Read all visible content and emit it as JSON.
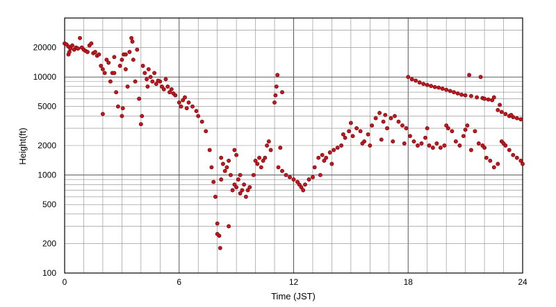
{
  "chart_data": {
    "type": "scatter",
    "title": "",
    "xlabel": "Time (JST)",
    "ylabel": "Height(ft)",
    "xlim": [
      0,
      24
    ],
    "ylim": [
      100,
      40000
    ],
    "yscale": "log",
    "x_ticks": [
      0,
      6,
      12,
      18,
      24
    ],
    "x_tick_labels": [
      "0",
      "6",
      "12",
      "18",
      "24"
    ],
    "y_ticks": [
      100,
      200,
      500,
      1000,
      2000,
      5000,
      10000,
      20000
    ],
    "y_tick_labels": [
      "100",
      "200",
      "500",
      "1000",
      "2000",
      "5000",
      "10000",
      "20000"
    ],
    "grid": true,
    "marker_color": "#c8141e",
    "marker_edge_color": "#6a0a0a",
    "series": [
      {
        "points": [
          [
            0.0,
            22000
          ],
          [
            0.1,
            21500
          ],
          [
            0.2,
            20500
          ],
          [
            0.3,
            19500
          ],
          [
            0.4,
            21000
          ],
          [
            0.5,
            19000
          ],
          [
            0.6,
            20000
          ],
          [
            0.7,
            19500
          ],
          [
            0.8,
            25000
          ],
          [
            0.9,
            20000
          ],
          [
            1.0,
            19000
          ],
          [
            1.1,
            18500
          ],
          [
            1.2,
            18000
          ],
          [
            1.3,
            21000
          ],
          [
            1.4,
            22000
          ],
          [
            1.5,
            17500
          ],
          [
            1.6,
            18000
          ],
          [
            1.7,
            16500
          ],
          [
            1.8,
            17000
          ],
          [
            0.2,
            17000
          ],
          [
            0.25,
            18000
          ],
          [
            1.9,
            13000
          ],
          [
            2.0,
            12000
          ],
          [
            2.0,
            4200
          ],
          [
            2.1,
            11000
          ],
          [
            2.2,
            15000
          ],
          [
            2.3,
            14000
          ],
          [
            2.4,
            9000
          ],
          [
            2.5,
            11000
          ],
          [
            2.6,
            16000
          ],
          [
            2.7,
            7000
          ],
          [
            2.8,
            5000
          ],
          [
            2.9,
            13000
          ],
          [
            3.0,
            4000
          ],
          [
            3.05,
            4800
          ],
          [
            3.1,
            17000
          ],
          [
            3.2,
            12000
          ],
          [
            3.3,
            8000
          ],
          [
            3.4,
            18000
          ],
          [
            3.5,
            25000
          ],
          [
            3.55,
            23000
          ],
          [
            3.6,
            15000
          ],
          [
            3.7,
            9000
          ],
          [
            3.8,
            19000
          ],
          [
            3.9,
            6000
          ],
          [
            4.0,
            3300
          ],
          [
            4.05,
            4000
          ],
          [
            4.1,
            13000
          ],
          [
            3.0,
            15000
          ],
          [
            2.6,
            11000
          ],
          [
            3.2,
            17000
          ],
          [
            4.2,
            11000
          ],
          [
            4.3,
            9500
          ],
          [
            4.4,
            12000
          ],
          [
            4.5,
            10000
          ],
          [
            4.6,
            9000
          ],
          [
            4.7,
            11000
          ],
          [
            4.8,
            8500
          ],
          [
            5.0,
            9000
          ],
          [
            5.1,
            8000
          ],
          [
            5.2,
            7500
          ],
          [
            5.3,
            9500
          ],
          [
            5.4,
            8000
          ],
          [
            5.5,
            7000
          ],
          [
            5.6,
            7500
          ],
          [
            5.8,
            6500
          ],
          [
            6.0,
            5500
          ],
          [
            6.1,
            5000
          ],
          [
            6.2,
            5800
          ],
          [
            6.3,
            6200
          ],
          [
            6.5,
            5500
          ],
          [
            6.7,
            5000
          ],
          [
            6.9,
            4500
          ],
          [
            7.0,
            4000
          ],
          [
            7.2,
            3500
          ],
          [
            7.4,
            2800
          ],
          [
            4.35,
            8000
          ],
          [
            4.9,
            9200
          ],
          [
            5.7,
            6800
          ],
          [
            6.4,
            4800
          ],
          [
            7.6,
            1800
          ],
          [
            7.7,
            1200
          ],
          [
            7.8,
            850
          ],
          [
            7.9,
            600
          ],
          [
            8.0,
            320
          ],
          [
            8.1,
            240
          ],
          [
            8.15,
            180
          ],
          [
            8.2,
            1500
          ],
          [
            8.3,
            1300
          ],
          [
            8.4,
            1100
          ],
          [
            8.5,
            1200
          ],
          [
            8.6,
            1400
          ],
          [
            8.7,
            1000
          ],
          [
            8.8,
            700
          ],
          [
            8.9,
            800
          ],
          [
            9.0,
            750
          ],
          [
            9.1,
            900
          ],
          [
            9.2,
            650
          ],
          [
            9.3,
            700
          ],
          [
            9.4,
            800
          ],
          [
            9.5,
            600
          ],
          [
            9.6,
            700
          ],
          [
            9.7,
            750
          ],
          [
            8.9,
            1800
          ],
          [
            9.0,
            1600
          ],
          [
            8.0,
            250
          ],
          [
            8.6,
            300
          ],
          [
            8.2,
            900
          ],
          [
            9.2,
            1000
          ],
          [
            9.9,
            1000
          ],
          [
            10.0,
            1400
          ],
          [
            10.1,
            1300
          ],
          [
            10.2,
            1500
          ],
          [
            10.3,
            1200
          ],
          [
            10.4,
            1400
          ],
          [
            10.5,
            1500
          ],
          [
            10.6,
            2000
          ],
          [
            10.7,
            2200
          ],
          [
            10.8,
            1800
          ],
          [
            11.0,
            5500
          ],
          [
            11.05,
            6500
          ],
          [
            11.1,
            8000
          ],
          [
            11.15,
            10500
          ],
          [
            11.4,
            7000
          ],
          [
            11.2,
            1200
          ],
          [
            11.4,
            1100
          ],
          [
            11.6,
            1000
          ],
          [
            11.8,
            950
          ],
          [
            12.0,
            900
          ],
          [
            12.2,
            850
          ],
          [
            12.4,
            750
          ],
          [
            12.5,
            700
          ],
          [
            12.6,
            800
          ],
          [
            12.8,
            900
          ],
          [
            13.0,
            950
          ],
          [
            11.3,
            1900
          ],
          [
            12.3,
            800
          ],
          [
            13.1,
            1200
          ],
          [
            13.3,
            1500
          ],
          [
            13.5,
            1600
          ],
          [
            13.7,
            1500
          ],
          [
            13.9,
            1700
          ],
          [
            14.1,
            1800
          ],
          [
            14.3,
            1900
          ],
          [
            14.5,
            2000
          ],
          [
            14.7,
            2400
          ],
          [
            14.9,
            2800
          ],
          [
            15.1,
            2500
          ],
          [
            15.3,
            3000
          ],
          [
            15.5,
            2800
          ],
          [
            15.7,
            2200
          ],
          [
            15.9,
            2600
          ],
          [
            16.1,
            3200
          ],
          [
            16.3,
            3800
          ],
          [
            16.5,
            4300
          ],
          [
            16.7,
            3500
          ],
          [
            16.9,
            3000
          ],
          [
            17.1,
            3800
          ],
          [
            17.3,
            4000
          ],
          [
            17.5,
            3500
          ],
          [
            17.7,
            3200
          ],
          [
            17.9,
            3000
          ],
          [
            13.4,
            1000
          ],
          [
            14.0,
            1300
          ],
          [
            15.0,
            3400
          ],
          [
            15.6,
            2100
          ],
          [
            16.0,
            2000
          ],
          [
            16.6,
            2300
          ],
          [
            17.2,
            2200
          ],
          [
            17.8,
            2100
          ],
          [
            13.6,
            1400
          ],
          [
            14.6,
            2600
          ],
          [
            16.8,
            4100
          ],
          [
            18.0,
            10000
          ],
          [
            18.2,
            9500
          ],
          [
            18.4,
            9200
          ],
          [
            18.6,
            8800
          ],
          [
            18.8,
            8500
          ],
          [
            19.0,
            8300
          ],
          [
            19.2,
            8100
          ],
          [
            19.4,
            7900
          ],
          [
            19.6,
            7800
          ],
          [
            19.8,
            7600
          ],
          [
            20.0,
            7400
          ],
          [
            20.2,
            7200
          ],
          [
            20.4,
            7000
          ],
          [
            20.6,
            6800
          ],
          [
            20.8,
            6600
          ],
          [
            21.0,
            6500
          ],
          [
            21.2,
            10500
          ],
          [
            21.3,
            6400
          ],
          [
            21.6,
            6200
          ],
          [
            21.8,
            10000
          ],
          [
            21.9,
            6100
          ],
          [
            22.0,
            6000
          ],
          [
            22.2,
            5900
          ],
          [
            22.4,
            5800
          ],
          [
            22.5,
            6200
          ],
          [
            22.7,
            4600
          ],
          [
            22.9,
            4400
          ],
          [
            23.1,
            4200
          ],
          [
            23.3,
            4000
          ],
          [
            23.5,
            3900
          ],
          [
            23.7,
            3800
          ],
          [
            23.9,
            3700
          ],
          [
            22.8,
            5200
          ],
          [
            23.4,
            4100
          ],
          [
            18.1,
            2500
          ],
          [
            18.3,
            2200
          ],
          [
            18.5,
            2000
          ],
          [
            18.7,
            2100
          ],
          [
            18.9,
            2400
          ],
          [
            19.1,
            2000
          ],
          [
            19.3,
            1900
          ],
          [
            19.5,
            2100
          ],
          [
            19.7,
            1900
          ],
          [
            19.9,
            2000
          ],
          [
            20.1,
            3000
          ],
          [
            20.3,
            2800
          ],
          [
            20.5,
            2200
          ],
          [
            20.7,
            2000
          ],
          [
            20.9,
            2500
          ],
          [
            21.1,
            3200
          ],
          [
            21.3,
            1800
          ],
          [
            21.5,
            2800
          ],
          [
            21.7,
            2100
          ],
          [
            21.9,
            2000
          ],
          [
            22.1,
            1500
          ],
          [
            22.3,
            1400
          ],
          [
            22.5,
            1200
          ],
          [
            22.7,
            1300
          ],
          [
            22.9,
            2200
          ],
          [
            23.1,
            2000
          ],
          [
            23.3,
            1800
          ],
          [
            23.5,
            1600
          ],
          [
            23.7,
            1500
          ],
          [
            23.9,
            1400
          ],
          [
            24.0,
            1300
          ],
          [
            19.0,
            3000
          ],
          [
            20.0,
            3200
          ],
          [
            21.0,
            2900
          ],
          [
            22.0,
            1900
          ],
          [
            23.0,
            2100
          ]
        ]
      }
    ]
  }
}
